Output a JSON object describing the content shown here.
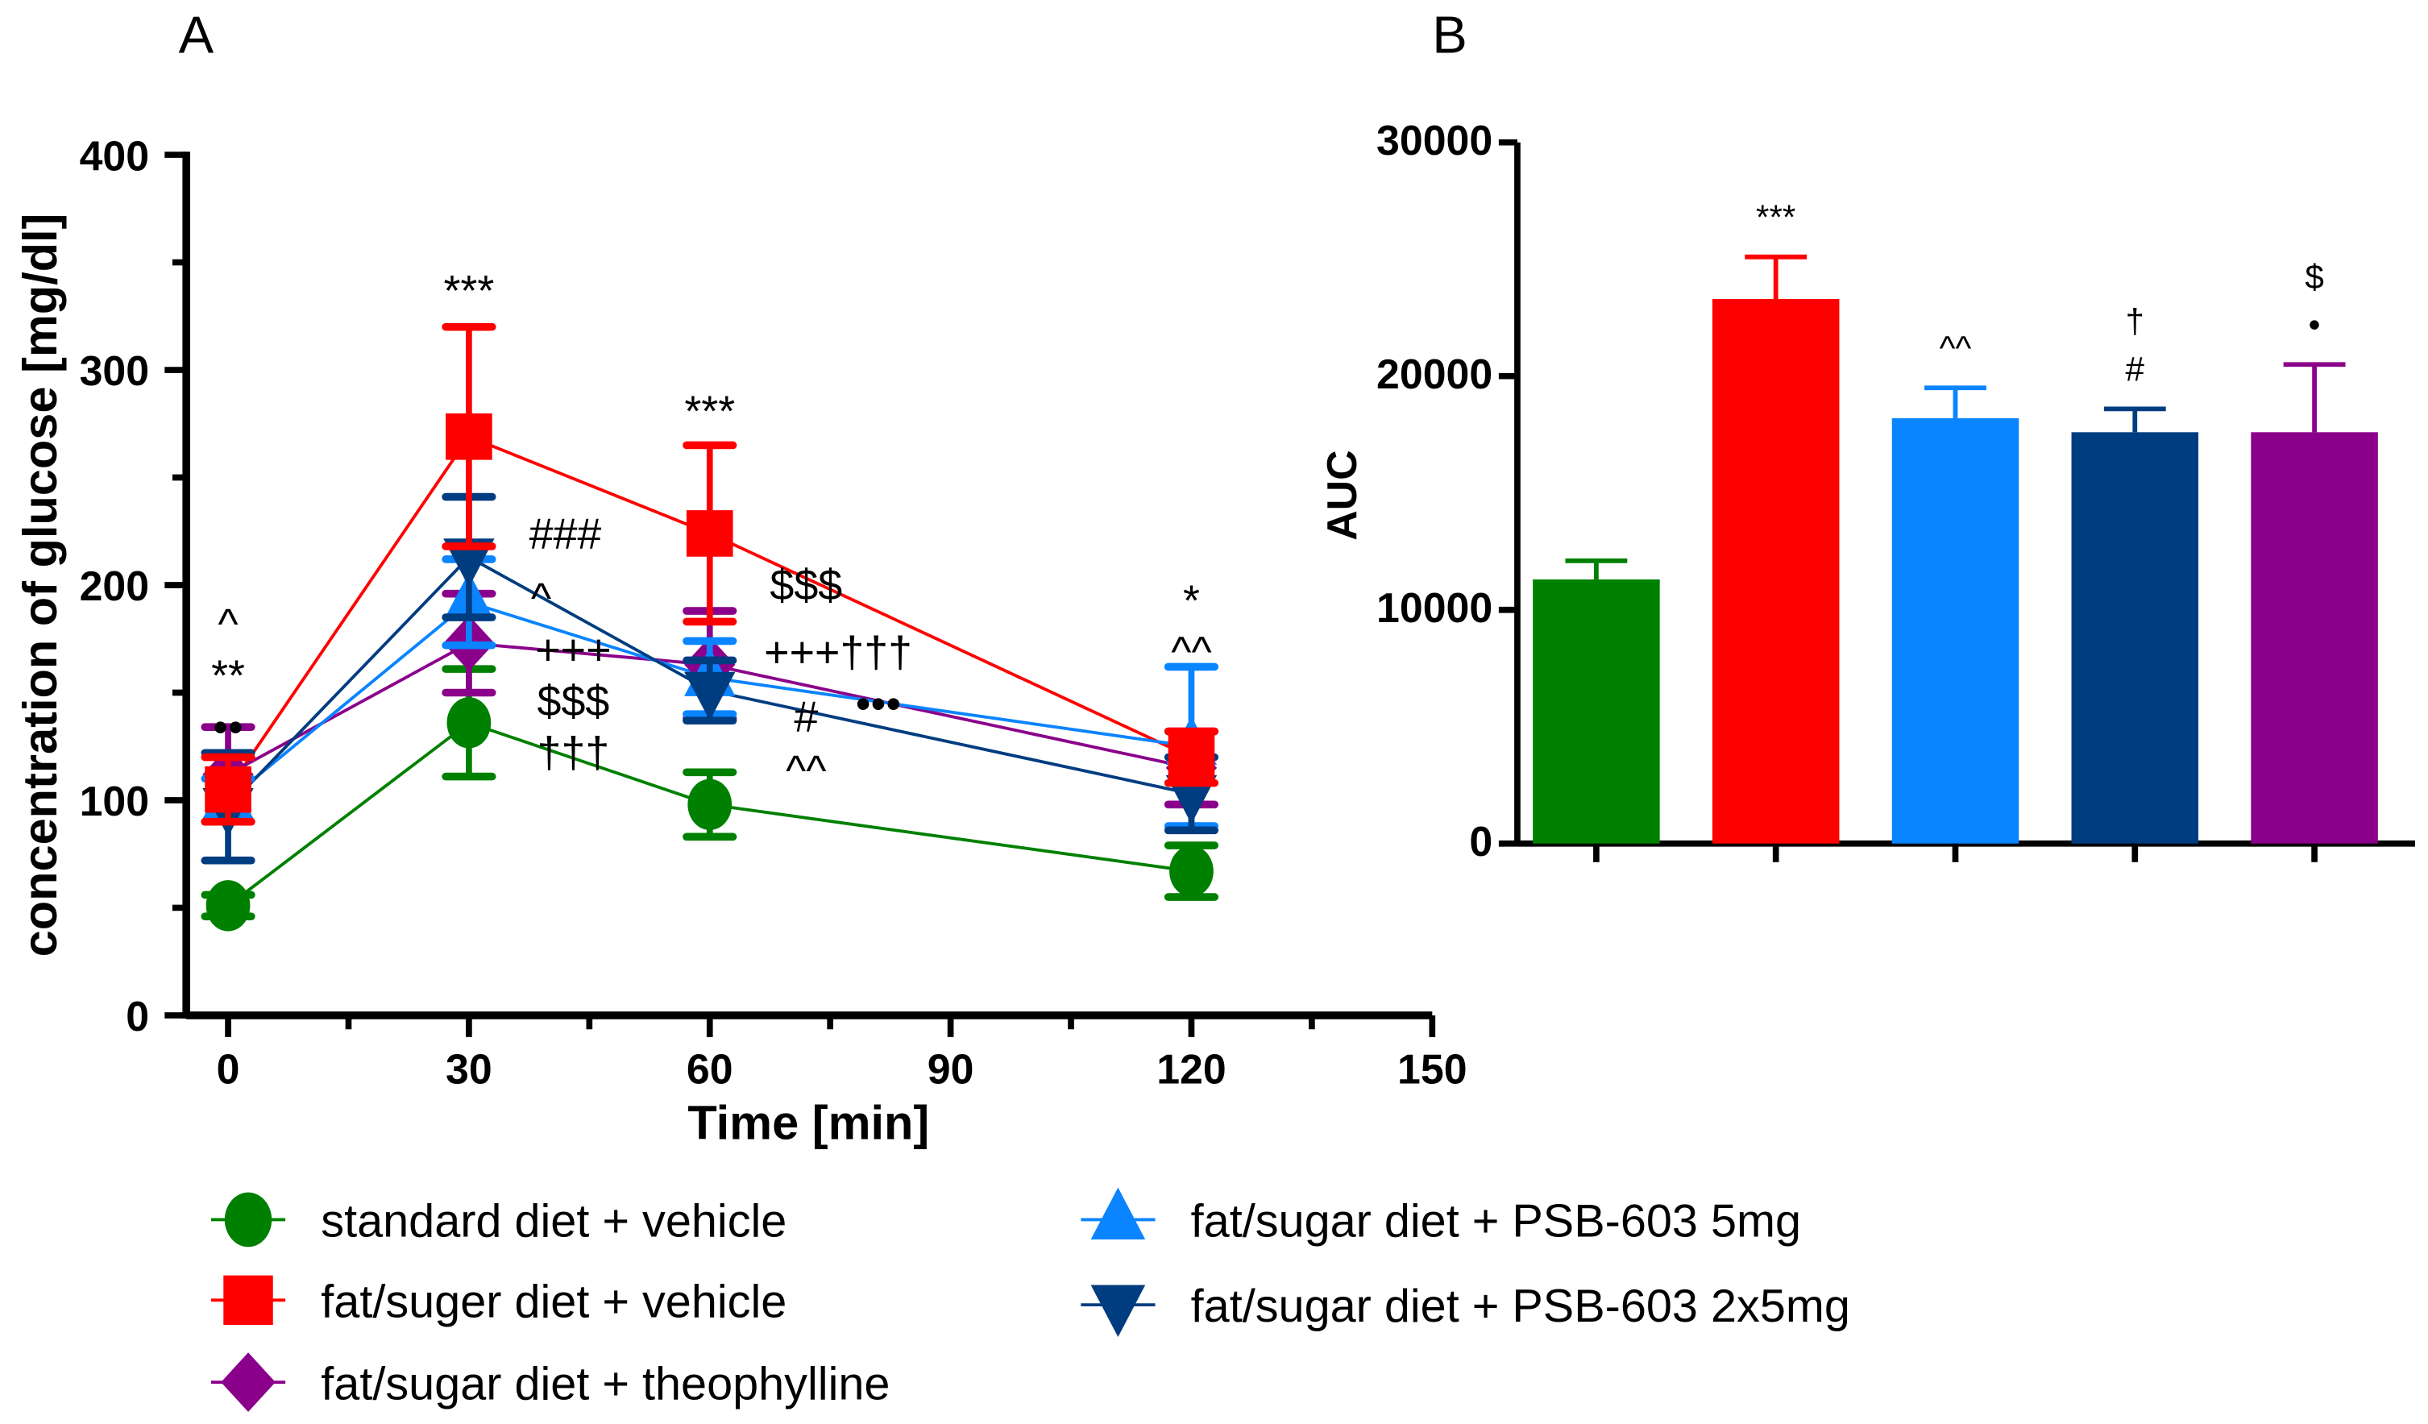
{
  "chart_data": [
    {
      "type": "line",
      "panel_label": "A",
      "xlabel": "Time [min]",
      "ylabel": "concentration of glucose [mg/dl]",
      "xlim": [
        0,
        150
      ],
      "ylim": [
        0,
        400
      ],
      "xticks": [
        "0",
        "30",
        "60",
        "90",
        "120",
        "150"
      ],
      "yticks": [
        "0",
        "100",
        "200",
        "300",
        "400"
      ],
      "x": [
        0,
        30,
        60,
        120
      ],
      "series": [
        {
          "name": "standard diet + vehicle",
          "color": "#008000",
          "marker": "circle",
          "values": [
            51,
            136,
            98,
            67
          ],
          "errors": [
            5,
            25,
            15,
            12
          ]
        },
        {
          "name": "fat/suger diet + vehicle",
          "color": "#ff0000",
          "marker": "square",
          "values": [
            105,
            269,
            224,
            120
          ],
          "errors": [
            15,
            51,
            41,
            12
          ]
        },
        {
          "name": "fat/sugar diet + theophylline",
          "color": "#8b008b",
          "marker": "diamond",
          "values": [
            112,
            173,
            163,
            115
          ],
          "errors": [
            22,
            23,
            25,
            17
          ]
        },
        {
          "name": "fat/sugar diet + PSB-603 5mg",
          "color": "#0a84ff",
          "marker": "triangle-up",
          "values": [
            100,
            192,
            157,
            125
          ],
          "errors": [
            10,
            20,
            17,
            37
          ]
        },
        {
          "name": "fat/sugar diet + PSB-603 2x5mg",
          "color": "#003d80",
          "marker": "triangle-down",
          "values": [
            97,
            213,
            151,
            103
          ],
          "errors": [
            25,
            28,
            14,
            17
          ]
        }
      ],
      "annotations": [
        {
          "text": "^",
          "x": 0,
          "y": 175
        },
        {
          "text": "**",
          "x": 0,
          "y": 152
        },
        {
          "text": "••",
          "x": 0,
          "y": 139
        },
        {
          "text": "***",
          "x": 30,
          "y": 330
        },
        {
          "text": "###",
          "x": 42,
          "y": 217
        },
        {
          "text": "^",
          "x": 39,
          "y": 187
        },
        {
          "text": "+++",
          "x": 43,
          "y": 168
        },
        {
          "text": "$$$",
          "x": 43,
          "y": 147
        },
        {
          "text": "†††",
          "x": 43,
          "y": 125
        },
        {
          "text": "***",
          "x": 60,
          "y": 274
        },
        {
          "text": "$$$",
          "x": 72,
          "y": 193
        },
        {
          "text": "+++†††",
          "x": 76,
          "y": 162
        },
        {
          "text": "•••",
          "x": 81,
          "y": 142
        },
        {
          "text": "#",
          "x": 72,
          "y": 132
        },
        {
          "text": "^^",
          "x": 72,
          "y": 107
        },
        {
          "text": "*",
          "x": 120,
          "y": 186
        },
        {
          "text": "^^",
          "x": 120,
          "y": 168
        }
      ],
      "legend_position": "bottom"
    },
    {
      "type": "bar",
      "panel_label": "B",
      "ylabel": "AUC",
      "ylim": [
        0,
        30000
      ],
      "yticks": [
        "0",
        "10000",
        "20000",
        "30000"
      ],
      "categories": [
        "standard diet + vehicle",
        "fat/suger diet + vehicle",
        "fat/sugar diet + PSB-603 5mg",
        "fat/sugar diet + PSB-603 2x5mg",
        "fat/sugar diet + theophylline"
      ],
      "values": [
        11300,
        23300,
        18200,
        17600,
        17600
      ],
      "errors": [
        800,
        1800,
        1300,
        1000,
        2900
      ],
      "colors": [
        "#008000",
        "#ff0000",
        "#0a84ff",
        "#003d80",
        "#8b008b"
      ],
      "annotations": [
        [],
        [
          "***"
        ],
        [
          "^^"
        ],
        [
          "†",
          "#"
        ],
        [
          "$",
          "•"
        ]
      ]
    }
  ]
}
